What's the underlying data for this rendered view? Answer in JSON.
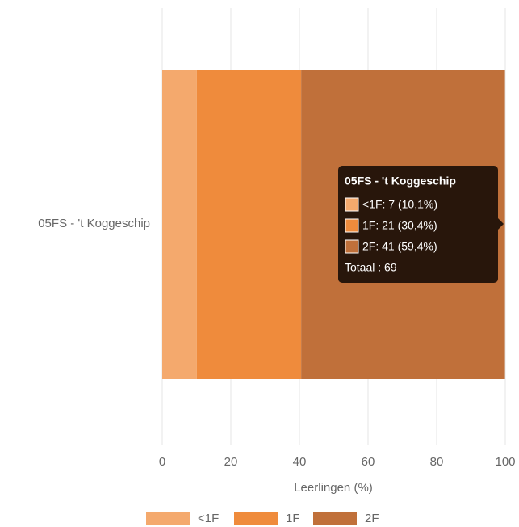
{
  "chart_data": {
    "type": "stacked_bar_horizontal",
    "categories": [
      "05FS - 't Koggeschip"
    ],
    "series": [
      {
        "name": "<1F",
        "color": "#f4a96d",
        "values": [
          10.1
        ]
      },
      {
        "name": "1F",
        "color": "#ef8b3c",
        "values": [
          30.4
        ]
      },
      {
        "name": "2F",
        "color": "#c0703a",
        "values": [
          59.4
        ]
      }
    ],
    "xlabel": "Leerlingen (%)",
    "xlim": [
      0,
      100
    ],
    "xticks": [
      0,
      20,
      40,
      60,
      80,
      100
    ],
    "grid": true,
    "legend": "bottom",
    "tooltip": {
      "title": "05FS - 't Koggeschip",
      "lines": [
        "<1F: 7 (10,1%)",
        "1F: 21 (30,4%)",
        "2F: 41 (59,4%)"
      ],
      "total": "Totaal : 69"
    }
  }
}
